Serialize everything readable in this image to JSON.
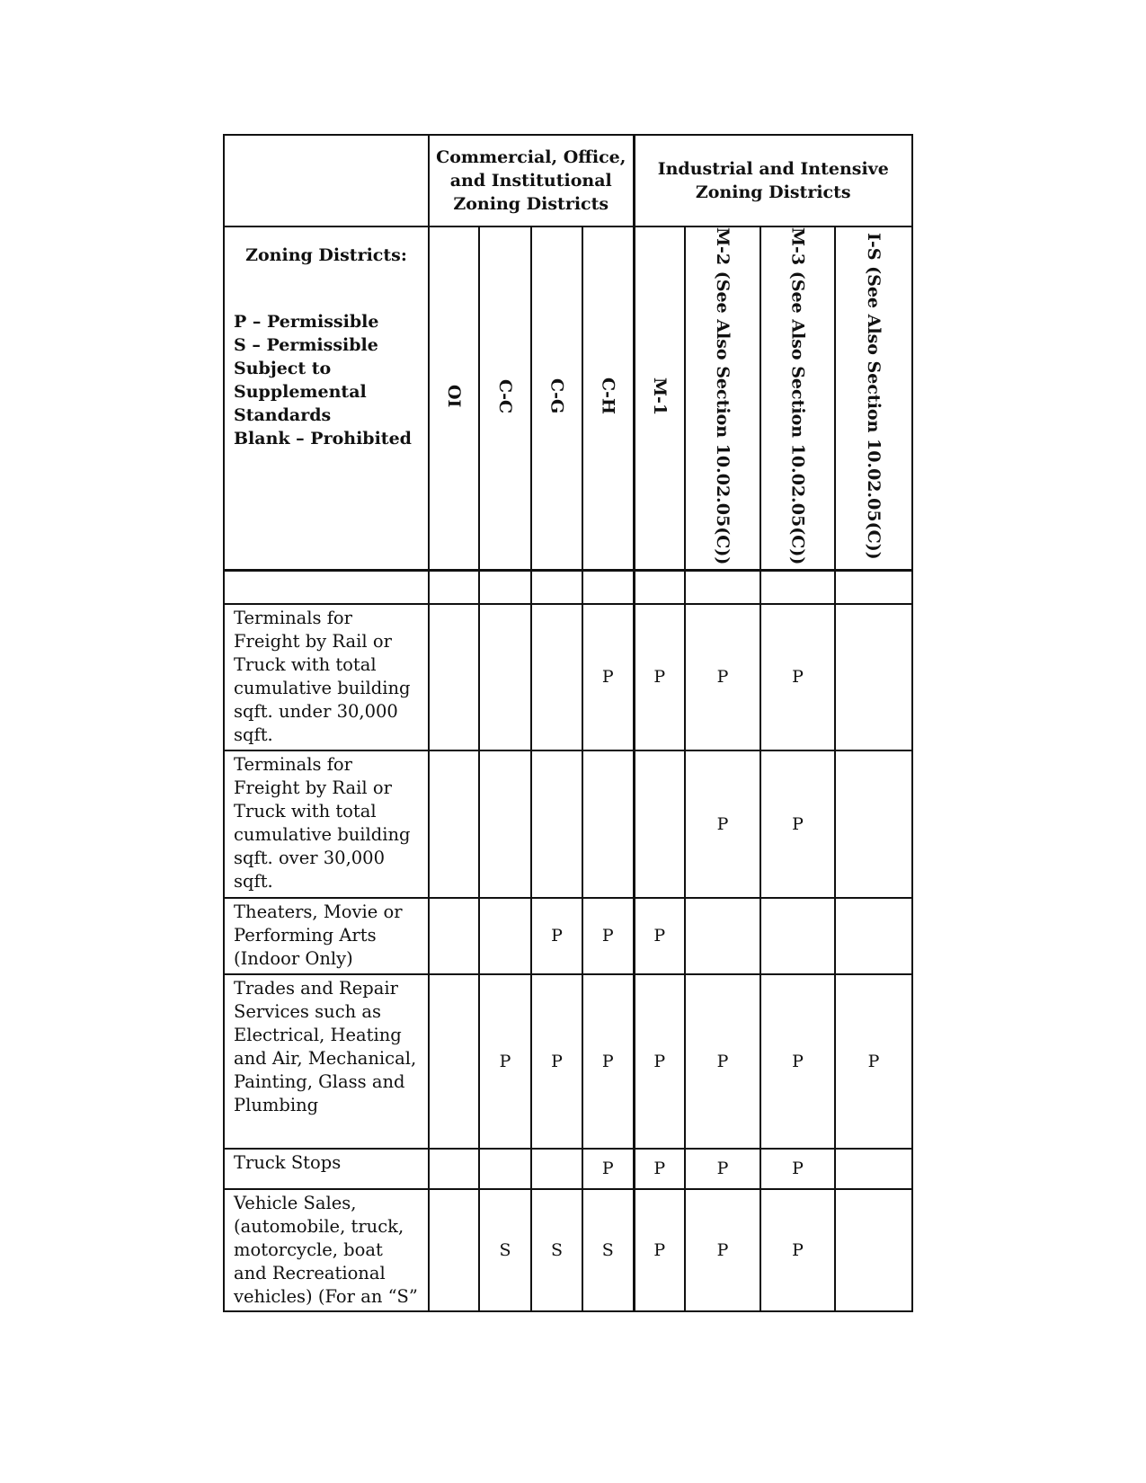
{
  "header": {
    "group_commercial": "Commercial, Office, and Institutional Zoning Districts",
    "group_industrial": "Industrial and Intensive Zoning Districts",
    "legend_title": "Zoning Districts:",
    "legend_lines": [
      "P – Permissible",
      "S – Permissible Subject to Supplemental Standards",
      "Blank – Prohibited"
    ],
    "columns": [
      "OI",
      "C-C",
      "C-G",
      "C-H",
      "M-1",
      "M-2 (See Also Section 10.02.05(C))",
      "M-3 (See Also Section 10.02.05(C))",
      "I-S (See Also Section 10.02.05(C))"
    ]
  },
  "rows": [
    {
      "use": "",
      "values": [
        "",
        "",
        "",
        "",
        "",
        "",
        "",
        ""
      ]
    },
    {
      "use": "Terminals for Freight by Rail or Truck with total cumulative building sqft. under 30,000 sqft.",
      "values": [
        "",
        "",
        "",
        "P",
        "P",
        "P",
        "P",
        ""
      ]
    },
    {
      "use": "Terminals for Freight by Rail or Truck with total cumulative building sqft. over 30,000 sqft.",
      "values": [
        "",
        "",
        "",
        "",
        "",
        "P",
        "P",
        ""
      ]
    },
    {
      "use": "Theaters, Movie or Performing Arts (Indoor Only)",
      "values": [
        "",
        "",
        "P",
        "P",
        "P",
        "",
        "",
        ""
      ]
    },
    {
      "use": "Trades and Repair Services such as Electrical, Heating and Air, Mechanical, Painting, Glass and Plumbing",
      "values": [
        "",
        "P",
        "P",
        "P",
        "P",
        "P",
        "P",
        "P"
      ]
    },
    {
      "use": "Truck Stops",
      "values": [
        "",
        "",
        "",
        "P",
        "P",
        "P",
        "P",
        ""
      ]
    },
    {
      "use": "Vehicle Sales, (automobile, truck, motorcycle, boat and Recreational vehicles) (For an “S”",
      "values": [
        "",
        "S",
        "S",
        "S",
        "P",
        "P",
        "P",
        ""
      ]
    }
  ]
}
